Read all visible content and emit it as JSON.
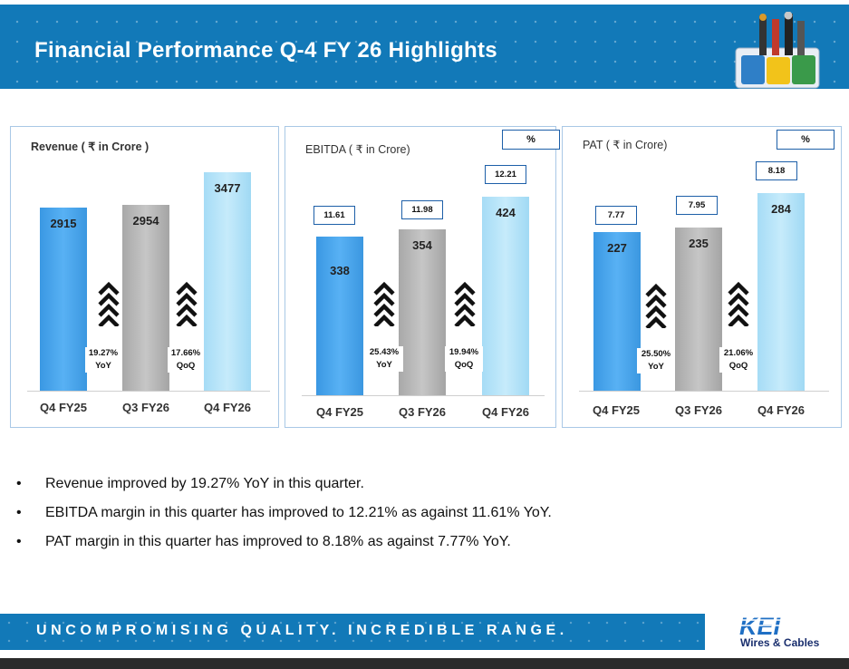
{
  "header": {
    "title": "Financial Performance Q-4 FY 26 Highlights"
  },
  "chart_data": [
    {
      "type": "bar",
      "title": "Revenue  ( ₹ in Crore )",
      "categories": [
        "Q4 FY25",
        "Q3 FY26",
        "Q4 FY26"
      ],
      "values": [
        2915,
        2954,
        3477
      ],
      "growth": [
        {
          "value": "19.27%",
          "label": "YoY"
        },
        {
          "value": "17.66%",
          "label": "QoQ"
        }
      ]
    },
    {
      "type": "bar",
      "title": "EBITDA ( ₹ in Crore)",
      "categories": [
        "Q4 FY25",
        "Q3 FY26",
        "Q4 FY26"
      ],
      "values": [
        338,
        354,
        424
      ],
      "margin_unit": "%",
      "margins": [
        "11.61",
        "11.98",
        "12.21"
      ],
      "growth": [
        {
          "value": "25.43%",
          "label": "YoY"
        },
        {
          "value": "19.94%",
          "label": "QoQ"
        }
      ]
    },
    {
      "type": "bar",
      "title": "PAT ( ₹ in Crore)",
      "categories": [
        "Q4 FY25",
        "Q3 FY26",
        "Q4 FY26"
      ],
      "values": [
        227,
        235,
        284
      ],
      "margin_unit": "%",
      "margins": [
        "7.77",
        "7.95",
        "8.18"
      ],
      "growth": [
        {
          "value": "25.50%",
          "label": "YoY"
        },
        {
          "value": "21.06%",
          "label": "QoQ"
        }
      ]
    }
  ],
  "bullets": [
    "Revenue improved by 19.27% YoY in this quarter.",
    "EBITDA margin in this quarter has improved to 12.21% as against 11.61% YoY.",
    "PAT margin in this quarter has improved to 8.18% as against 7.77% YoY."
  ],
  "bullet_marker": "•",
  "footer": {
    "tagline": "UNCOMPROMISING QUALITY. INCREDIBLE RANGE."
  },
  "logo": {
    "brand": "KEI",
    "subtitle": "Wires & Cables"
  },
  "colors": {
    "brand_blue": "#1279b8",
    "bar_blue": "#4aa7ee",
    "bar_grey": "#b8b8b8",
    "bar_light": "#b8e4f8"
  }
}
